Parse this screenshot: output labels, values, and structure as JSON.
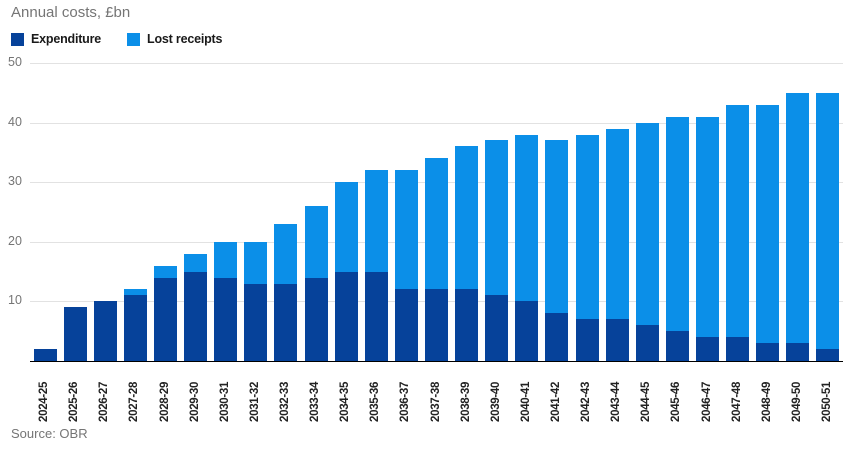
{
  "title": "Annual costs, £bn",
  "source": "Source: OBR",
  "colors": {
    "expenditure": "#06429a",
    "lost_receipts": "#0b8fe8",
    "gridline": "#e2e2e2",
    "axis": "#000000",
    "tick_label": "#757575",
    "category_label": "#222222"
  },
  "chart_data": {
    "type": "bar",
    "stacked": true,
    "title": "Annual costs, £bn",
    "xlabel": "",
    "ylabel": "",
    "ylim": [
      0,
      50
    ],
    "yticks": [
      10,
      20,
      30,
      40,
      50
    ],
    "grid": true,
    "legend_position": "top-left",
    "categories": [
      "2024-25",
      "2025-26",
      "2026-27",
      "2027-28",
      "2028-29",
      "2029-30",
      "2030-31",
      "2031-32",
      "2032-33",
      "2033-34",
      "2034-35",
      "2035-36",
      "2036-37",
      "2037-38",
      "2038-39",
      "2039-40",
      "2040-41",
      "2041-42",
      "2042-43",
      "2043-44",
      "2044-45",
      "2045-46",
      "2046-47",
      "2047-48",
      "2048-49",
      "2049-50",
      "2050-51"
    ],
    "series": [
      {
        "name": "Expenditure",
        "color": "#06429a",
        "values": [
          2,
          9,
          10,
          11,
          14,
          15,
          14,
          13,
          13,
          14,
          15,
          15,
          12,
          12,
          12,
          11,
          10,
          8,
          7,
          7,
          6,
          5,
          4,
          4,
          3,
          3,
          2
        ]
      },
      {
        "name": "Lost receipts",
        "color": "#0b8fe8",
        "values": [
          0,
          0,
          0,
          1,
          2,
          3,
          6,
          7,
          10,
          12,
          15,
          17,
          20,
          22,
          24,
          26,
          28,
          29,
          31,
          32,
          34,
          36,
          37,
          39,
          40,
          42,
          43
        ]
      }
    ],
    "totals": [
      2,
      9,
      10,
      12,
      16,
      18,
      20,
      20,
      23,
      26,
      30,
      32,
      32,
      34,
      36,
      37,
      38,
      37,
      38,
      39,
      40,
      41,
      41,
      43,
      43,
      45,
      45
    ]
  }
}
